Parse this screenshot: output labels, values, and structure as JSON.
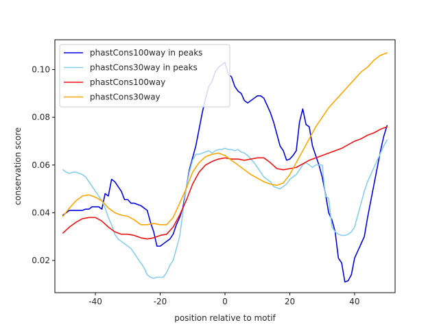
{
  "chart_data": {
    "type": "line",
    "title": "",
    "xlabel": "position relative to motif",
    "ylabel": "conservation score",
    "xlim": [
      -52.5,
      52.5
    ],
    "ylim": [
      0.0065,
      0.1125
    ],
    "xticks": [
      -40,
      -20,
      0,
      20,
      40
    ],
    "yticks": [
      0.02,
      0.04,
      0.06,
      0.08,
      0.1
    ],
    "ytick_labels": [
      "0.02",
      "0.04",
      "0.06",
      "0.08",
      "0.10"
    ],
    "grid": false,
    "legend_position": "upper-left",
    "series": [
      {
        "name": "phastCons100way in peaks",
        "color": "#0000dd",
        "x": [
          -50,
          -49,
          -48,
          -47,
          -46,
          -45,
          -44,
          -43,
          -42,
          -41,
          -40,
          -39,
          -38,
          -37,
          -36,
          -35,
          -34,
          -33,
          -32,
          -31,
          -30,
          -29,
          -28,
          -27,
          -26,
          -25,
          -24,
          -23,
          -22,
          -21,
          -20,
          -19,
          -18,
          -17,
          -16,
          -15,
          -14,
          -13,
          -12,
          -11,
          -10,
          -9,
          -8,
          -7,
          -6,
          -5,
          -4,
          -3,
          -2,
          -1,
          0,
          1,
          2,
          3,
          4,
          5,
          6,
          7,
          8,
          9,
          10,
          11,
          12,
          13,
          14,
          15,
          16,
          17,
          18,
          19,
          20,
          21,
          22,
          23,
          24,
          25,
          26,
          27,
          28,
          29,
          30,
          31,
          32,
          33,
          34,
          35,
          36,
          37,
          38,
          39,
          40,
          41,
          42,
          43,
          44,
          45,
          46,
          47,
          48,
          49,
          50
        ],
        "y": [
          0.039,
          0.04,
          0.041,
          0.041,
          0.041,
          0.041,
          0.041,
          0.0415,
          0.0415,
          0.0425,
          0.0425,
          0.0425,
          0.0415,
          0.048,
          0.047,
          0.054,
          0.053,
          0.051,
          0.049,
          0.0455,
          0.0455,
          0.044,
          0.044,
          0.0435,
          0.043,
          0.042,
          0.041,
          0.036,
          0.032,
          0.026,
          0.026,
          0.027,
          0.028,
          0.029,
          0.031,
          0.035,
          0.038,
          0.042,
          0.05,
          0.058,
          0.063,
          0.068,
          0.075,
          0.082,
          0.088,
          0.093,
          0.095,
          0.099,
          0.101,
          0.102,
          0.103,
          0.098,
          0.097,
          0.093,
          0.091,
          0.09,
          0.087,
          0.086,
          0.087,
          0.088,
          0.089,
          0.089,
          0.088,
          0.085,
          0.082,
          0.078,
          0.073,
          0.068,
          0.066,
          0.062,
          0.0625,
          0.064,
          0.066,
          0.078,
          0.0835,
          0.077,
          0.076,
          0.068,
          0.064,
          0.06,
          0.055,
          0.048,
          0.04,
          0.037,
          0.032,
          0.021,
          0.019,
          0.011,
          0.0115,
          0.014,
          0.021,
          0.024,
          0.027,
          0.03,
          0.038,
          0.045,
          0.052,
          0.059,
          0.066,
          0.072,
          0.0765
        ]
      },
      {
        "name": "phastCons30way in peaks",
        "color": "#87ceeb",
        "x": [
          -50,
          -49,
          -48,
          -47,
          -46,
          -45,
          -44,
          -43,
          -42,
          -41,
          -40,
          -39,
          -38,
          -37,
          -36,
          -35,
          -34,
          -33,
          -32,
          -31,
          -30,
          -29,
          -28,
          -27,
          -26,
          -25,
          -24,
          -23,
          -22,
          -21,
          -20,
          -19,
          -18,
          -17,
          -16,
          -15,
          -14,
          -13,
          -12,
          -11,
          -10,
          -9,
          -8,
          -7,
          -6,
          -5,
          -4,
          -3,
          -2,
          -1,
          0,
          1,
          2,
          3,
          4,
          5,
          6,
          7,
          8,
          9,
          10,
          11,
          12,
          13,
          14,
          15,
          16,
          17,
          18,
          19,
          20,
          21,
          22,
          23,
          24,
          25,
          26,
          27,
          28,
          29,
          30,
          31,
          32,
          33,
          34,
          35,
          36,
          37,
          38,
          39,
          40,
          41,
          42,
          43,
          44,
          45,
          46,
          47,
          48,
          49,
          50
        ],
        "y": [
          0.058,
          0.057,
          0.0565,
          0.057,
          0.057,
          0.0565,
          0.056,
          0.055,
          0.053,
          0.051,
          0.049,
          0.047,
          0.045,
          0.042,
          0.038,
          0.035,
          0.031,
          0.029,
          0.028,
          0.027,
          0.026,
          0.025,
          0.023,
          0.021,
          0.019,
          0.017,
          0.014,
          0.013,
          0.0125,
          0.013,
          0.013,
          0.013,
          0.015,
          0.018,
          0.02,
          0.025,
          0.03,
          0.04,
          0.05,
          0.057,
          0.062,
          0.0645,
          0.0645,
          0.065,
          0.0655,
          0.066,
          0.065,
          0.066,
          0.0665,
          0.0665,
          0.067,
          0.0665,
          0.0665,
          0.066,
          0.0665,
          0.0655,
          0.065,
          0.064,
          0.0625,
          0.061,
          0.059,
          0.057,
          0.055,
          0.054,
          0.053,
          0.051,
          0.0505,
          0.05,
          0.051,
          0.052,
          0.054,
          0.055,
          0.056,
          0.058,
          0.06,
          0.061,
          0.06,
          0.059,
          0.06,
          0.06,
          0.06,
          0.047,
          0.046,
          0.034,
          0.032,
          0.031,
          0.0305,
          0.0305,
          0.031,
          0.032,
          0.034,
          0.039,
          0.044,
          0.049,
          0.053,
          0.056,
          0.059,
          0.062,
          0.065,
          0.068,
          0.0705
        ]
      },
      {
        "name": "phastCons100way",
        "color": "#ee1111",
        "x": [
          -50,
          -48,
          -46,
          -44,
          -42,
          -40,
          -38,
          -36,
          -34,
          -32,
          -30,
          -28,
          -26,
          -24,
          -22,
          -20,
          -18,
          -16,
          -14,
          -12,
          -10,
          -8,
          -6,
          -4,
          -2,
          0,
          2,
          4,
          6,
          8,
          10,
          12,
          14,
          16,
          18,
          20,
          22,
          24,
          26,
          28,
          30,
          32,
          34,
          36,
          38,
          40,
          42,
          44,
          46,
          48,
          50
        ],
        "y": [
          0.0315,
          0.034,
          0.036,
          0.0375,
          0.038,
          0.038,
          0.0365,
          0.034,
          0.032,
          0.031,
          0.031,
          0.0305,
          0.0295,
          0.029,
          0.0295,
          0.0305,
          0.031,
          0.034,
          0.039,
          0.045,
          0.052,
          0.057,
          0.06,
          0.0615,
          0.0625,
          0.063,
          0.0625,
          0.0625,
          0.062,
          0.0625,
          0.063,
          0.063,
          0.061,
          0.0585,
          0.058,
          0.0585,
          0.059,
          0.0605,
          0.062,
          0.063,
          0.064,
          0.065,
          0.066,
          0.067,
          0.0685,
          0.07,
          0.071,
          0.0725,
          0.0735,
          0.075,
          0.076
        ]
      },
      {
        "name": "phastCons30way",
        "color": "#ffa500",
        "x": [
          -50,
          -48,
          -46,
          -44,
          -42,
          -40,
          -38,
          -36,
          -34,
          -32,
          -30,
          -28,
          -26,
          -24,
          -22,
          -20,
          -18,
          -16,
          -14,
          -12,
          -10,
          -8,
          -6,
          -4,
          -2,
          0,
          2,
          4,
          6,
          8,
          10,
          12,
          14,
          16,
          18,
          20,
          22,
          24,
          26,
          28,
          30,
          32,
          34,
          36,
          38,
          40,
          42,
          44,
          46,
          48,
          50
        ],
        "y": [
          0.0385,
          0.042,
          0.045,
          0.047,
          0.0475,
          0.0465,
          0.045,
          0.042,
          0.04,
          0.039,
          0.0385,
          0.037,
          0.035,
          0.035,
          0.0355,
          0.035,
          0.035,
          0.038,
          0.044,
          0.05,
          0.057,
          0.061,
          0.0635,
          0.0645,
          0.065,
          0.064,
          0.062,
          0.06,
          0.058,
          0.056,
          0.0545,
          0.053,
          0.052,
          0.0515,
          0.0525,
          0.056,
          0.061,
          0.066,
          0.071,
          0.076,
          0.08,
          0.084,
          0.087,
          0.09,
          0.093,
          0.096,
          0.099,
          0.101,
          0.104,
          0.106,
          0.107
        ]
      }
    ]
  }
}
